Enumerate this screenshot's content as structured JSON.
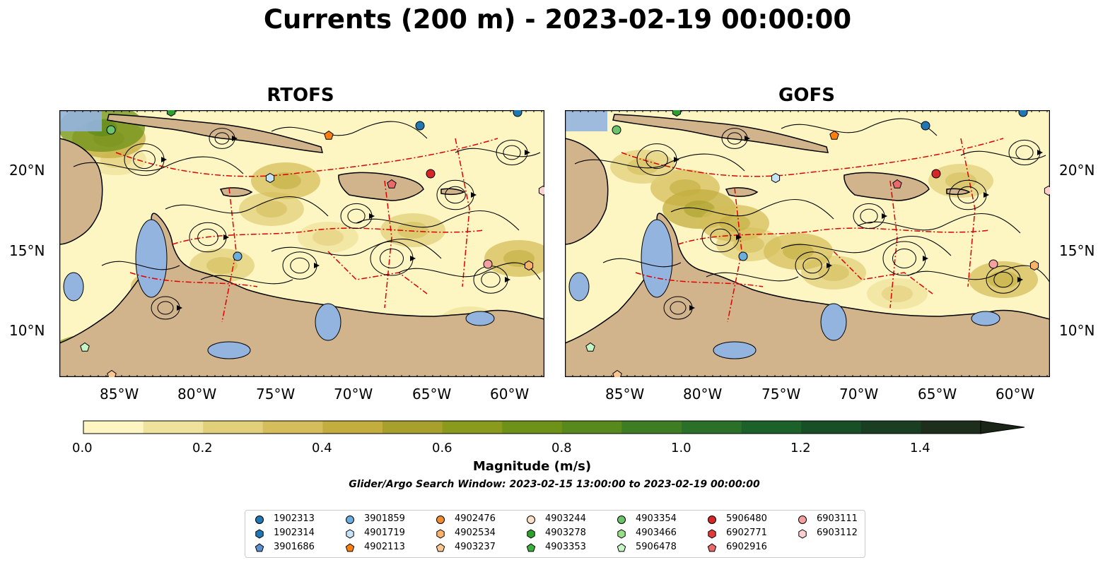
{
  "title": "Currents (200 m) - 2023-02-19 00:00:00",
  "panels": [
    {
      "name": "RTOFS"
    },
    {
      "name": "GOFS"
    }
  ],
  "longitude_ticks": [
    "85°W",
    "80°W",
    "75°W",
    "70°W",
    "65°W",
    "60°W"
  ],
  "latitude_ticks": [
    "20°N",
    "15°N",
    "10°N"
  ],
  "colorbar": {
    "label": "Magnitude (m/s)",
    "ticks": [
      "0.0",
      "0.2",
      "0.4",
      "0.6",
      "0.8",
      "1.0",
      "1.2",
      "1.4"
    ],
    "levels": [
      0.0,
      0.1,
      0.2,
      0.3,
      0.4,
      0.5,
      0.6,
      0.7,
      0.8,
      0.9,
      1.0,
      1.1,
      1.2,
      1.3,
      1.4,
      1.5
    ],
    "colors": [
      "#fdf6c3",
      "#efe29c",
      "#e2cf79",
      "#d4bd5a",
      "#c3ad3f",
      "#a8a02c",
      "#8a9a1c",
      "#6e9218",
      "#57891c",
      "#3f7d22",
      "#2a7028",
      "#1b6129",
      "#184f26",
      "#1a3e22",
      "#1d2e1c"
    ],
    "extend": "max"
  },
  "search_window": "Glider/Argo Search Window: 2023-02-15 13:00:00 to 2023-02-19 00:00:00",
  "colors": {
    "land": "#d2b48c",
    "water": "#94b4e0",
    "eez_line": "#e00000"
  },
  "legend": [
    {
      "label": "1902313",
      "marker": "circle",
      "color": "#1f77b4"
    },
    {
      "label": "1902314",
      "marker": "hexagon",
      "color": "#1f77b4"
    },
    {
      "label": "3901686",
      "marker": "pentagon",
      "color": "#5b8fd0"
    },
    {
      "label": "3901859",
      "marker": "circle",
      "color": "#6aaee0"
    },
    {
      "label": "4901719",
      "marker": "hexagon",
      "color": "#c6e2f5"
    },
    {
      "label": "4902113",
      "marker": "pentagon",
      "color": "#ff7f0e"
    },
    {
      "label": "4902476",
      "marker": "circle",
      "color": "#f28d2e"
    },
    {
      "label": "4902534",
      "marker": "hexagon",
      "color": "#f9b36a"
    },
    {
      "label": "4903237",
      "marker": "pentagon",
      "color": "#fcc690"
    },
    {
      "label": "4903244",
      "marker": "circle",
      "color": "#fbe0c8"
    },
    {
      "label": "4903278",
      "marker": "hexagon",
      "color": "#2ca02c"
    },
    {
      "label": "4903353",
      "marker": "pentagon",
      "color": "#3bb03b"
    },
    {
      "label": "4903354",
      "marker": "circle",
      "color": "#6bc46b"
    },
    {
      "label": "4903466",
      "marker": "hexagon",
      "color": "#98df8a"
    },
    {
      "label": "5906478",
      "marker": "pentagon",
      "color": "#c8f5c8"
    },
    {
      "label": "5906480",
      "marker": "circle",
      "color": "#d62728"
    },
    {
      "label": "6902771",
      "marker": "hexagon",
      "color": "#e03a3a"
    },
    {
      "label": "6902916",
      "marker": "pentagon",
      "color": "#e86a6a"
    },
    {
      "label": "6903111",
      "marker": "circle",
      "color": "#f4a0a0"
    },
    {
      "label": "6903112",
      "marker": "hexagon",
      "color": "#fcd0d0"
    }
  ]
}
